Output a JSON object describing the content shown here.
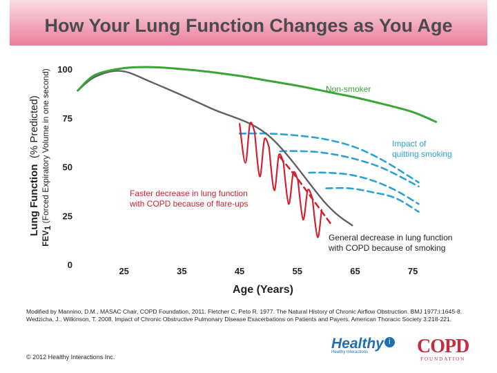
{
  "banner": {
    "title": "How Your Lung Function Changes as You Age"
  },
  "chart_data": {
    "type": "line",
    "title": "How Your Lung Function Changes as You Age",
    "ylabel_main": "Lung Function",
    "ylabel_main_suffix": "(% Predicted)",
    "ylabel_sub_prefix": "FEV",
    "ylabel_sub_subscript": "1",
    "ylabel_sub_rest": " (Forced Expiratory Volume in one second)",
    "xlabel": "Age (Years)",
    "xlim": [
      15,
      80
    ],
    "ylim": [
      0,
      100
    ],
    "xticks": [
      25,
      35,
      45,
      55,
      65,
      75
    ],
    "yticks": [
      0,
      25,
      50,
      75,
      100
    ],
    "series": [
      {
        "name": "Non-smoker",
        "color": "#3aa537",
        "style": "solid",
        "x": [
          17,
          20,
          25,
          30,
          35,
          40,
          45,
          50,
          55,
          60,
          65,
          70,
          75,
          79
        ],
        "y": [
          89,
          97,
          100.5,
          101,
          100,
          98.5,
          96.5,
          94,
          91.5,
          88.5,
          85.5,
          82,
          78,
          73
        ]
      },
      {
        "name": "General decrease in lung function with COPD because of smoking",
        "color": "#606062",
        "style": "solid",
        "x": [
          17,
          20,
          24.5,
          30,
          40,
          50,
          60,
          64.5
        ],
        "y": [
          89,
          96,
          99,
          93,
          80,
          66,
          31,
          20
        ]
      },
      {
        "name": "Faster decrease in lung function with COPD because of flare-ups",
        "color": "#d22030",
        "style": "solid",
        "segments": [
          {
            "x": [
              45.0,
              46.0,
              46.8,
              47.6
            ],
            "y": [
              72,
              52,
              72,
              68
            ]
          },
          {
            "x": [
              47.6,
              48.5,
              49.3,
              50.1
            ],
            "y": [
              68,
              45,
              64,
              60
            ]
          },
          {
            "x": [
              50.1,
              51.0,
              51.8,
              52.6
            ],
            "y": [
              60,
              38,
              56,
              52
            ]
          },
          {
            "x": [
              52.6,
              53.5,
              54.3,
              55.1
            ],
            "y": [
              52,
              31,
              47,
              43
            ]
          },
          {
            "x": [
              55.1,
              56.0,
              56.8,
              57.6
            ],
            "y": [
              43,
              23,
              38,
              34
            ]
          },
          {
            "x": [
              57.6,
              58.5,
              59.2
            ],
            "y": [
              34,
              14,
              28
            ]
          }
        ]
      },
      {
        "name": "Faster decrease projection",
        "color": "#d22030",
        "style": "dashed",
        "x": [
          52,
          55,
          58,
          61
        ],
        "y": [
          55,
          44,
          32,
          20
        ]
      },
      {
        "name": "Impact of quitting smoking",
        "color": "#2aa1d3",
        "style": "dashed",
        "curves": [
          {
            "x": [
              45,
              50,
              55,
              60,
              65,
              70,
              76
            ],
            "y": [
              67,
              67,
              66,
              64,
              60,
              53,
              42
            ]
          },
          {
            "x": [
              52,
              56,
              60,
              65,
              70,
              76
            ],
            "y": [
              58,
              58,
              57,
              54,
              49,
              40
            ]
          },
          {
            "x": [
              57,
              60,
              64,
              68,
              72,
              76
            ],
            "y": [
              47,
              47,
              46,
              43,
              38,
              31
            ]
          },
          {
            "x": [
              60,
              64,
              68,
              72,
              76
            ],
            "y": [
              39,
              39,
              37,
              34,
              27
            ]
          }
        ]
      }
    ],
    "annotations": {
      "nonsmoker": "Non-smoker",
      "quitting_line1": "Impact of",
      "quitting_line2": "quitting smoking",
      "flareups_line1": "Faster decrease in lung function",
      "flareups_line2": "with COPD because of flare-ups",
      "general_line1": "General decrease in lung function",
      "general_line2": "with COPD because of smoking"
    }
  },
  "footnote": {
    "line1": "Modified by Mannino, D.M., MASAC Chair, COPD Foundation, 2011. Fletcher C, Peto R. 1977. The Natural History of Chronic Airflow Obstruction. BMJ 1977;i:1645-8.",
    "line2": "Wedzicha, J., Wilkinson, T. 2008. Impact of Chronic Obstructive Pulmonary Disease Exacerbations on Patients and Payers. American Thoracic Society 3:218-221."
  },
  "copyright": "© 2012 Healthy Interactions Inc.",
  "logos": {
    "healthy_name": "Healthy",
    "healthy_i": "i",
    "healthy_sub": "Healthy Interactions",
    "copd_name": "COPD",
    "copd_sub": "FOUNDATION"
  },
  "colors": {
    "nonsmoker": "#3aa537",
    "copd": "#606062",
    "flareup": "#d22030",
    "quitting": "#2aa1d3"
  }
}
